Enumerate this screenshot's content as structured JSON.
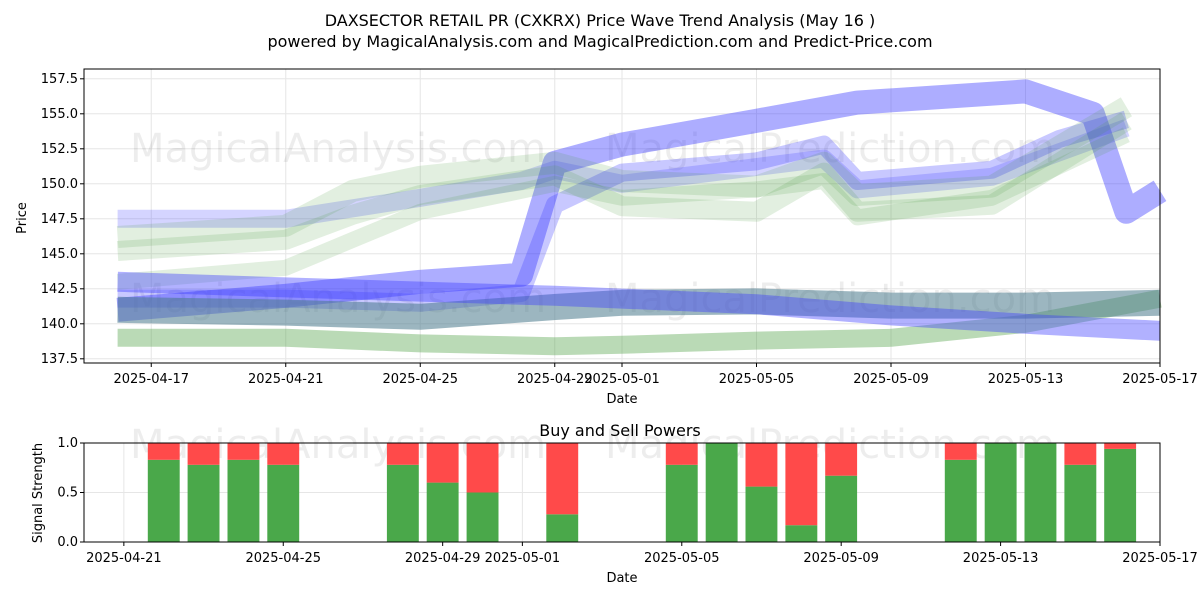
{
  "figure": {
    "title_line1": "DAXSECTOR RETAIL PR (CXKRX) Price Wave Trend Analysis (May 16 )",
    "title_line2": "powered by MagicalAnalysis.com and MagicalPrediction.com and Predict-Price.com",
    "watermarks": [
      "MagicalAnalysis.com",
      "MagicalPrediction.com"
    ]
  },
  "chart_data": [
    {
      "type": "area",
      "title": "",
      "xlabel": "Date",
      "ylabel": "Price",
      "xlim": [
        "2025-04-15",
        "2025-05-17"
      ],
      "ylim": [
        137.2,
        158.2
      ],
      "grid": true,
      "x_ticks": [
        "2025-04-17",
        "2025-04-21",
        "2025-04-25",
        "2025-04-29",
        "2025-05-01",
        "2025-05-05",
        "2025-05-09",
        "2025-05-13",
        "2025-05-17"
      ],
      "y_ticks": [
        137.5,
        140.0,
        142.5,
        145.0,
        147.5,
        150.0,
        152.5,
        155.0,
        157.5
      ],
      "colors": {
        "blue": "#3b3bff",
        "green": "#4a9e3f",
        "teal": "#4a7a8c"
      },
      "series": [
        {
          "color": "blue",
          "points": [
            [
              "2025-04-16",
              141.0
            ],
            [
              "2025-04-21",
              142.0
            ],
            [
              "2025-04-25",
              143.0
            ],
            [
              "2025-04-28",
              143.5
            ],
            [
              "2025-04-29",
              151.5
            ],
            [
              "2025-05-01",
              152.8
            ],
            [
              "2025-05-05",
              154.5
            ],
            [
              "2025-05-08",
              155.8
            ],
            [
              "2025-05-13",
              156.6
            ],
            [
              "2025-05-15",
              155.0
            ],
            [
              "2025-05-16",
              148.0
            ],
            [
              "2025-05-17",
              149.5
            ]
          ]
        },
        {
          "color": "blue",
          "points": [
            [
              "2025-04-16",
              141.8
            ],
            [
              "2025-04-21",
              141.8
            ],
            [
              "2025-04-25",
              141.5
            ],
            [
              "2025-04-28",
              142.2
            ],
            [
              "2025-04-29",
              148.5
            ],
            [
              "2025-05-01",
              150.8
            ],
            [
              "2025-05-05",
              151.6
            ],
            [
              "2025-05-07",
              152.8
            ],
            [
              "2025-05-08",
              150.2
            ],
            [
              "2025-05-12",
              151.0
            ],
            [
              "2025-05-14",
              153.2
            ],
            [
              "2025-05-16",
              154.6
            ]
          ]
        },
        {
          "color": "blue",
          "points": [
            [
              "2025-04-16",
              147.5
            ],
            [
              "2025-04-21",
              147.5
            ],
            [
              "2025-04-25",
              149.0
            ],
            [
              "2025-04-28",
              150.2
            ],
            [
              "2025-04-29",
              151.0
            ],
            [
              "2025-05-01",
              150.0
            ],
            [
              "2025-05-05",
              151.2
            ],
            [
              "2025-05-07",
              151.8
            ],
            [
              "2025-05-08",
              149.6
            ],
            [
              "2025-05-12",
              150.5
            ],
            [
              "2025-05-16",
              154.0
            ]
          ]
        },
        {
          "color": "green",
          "points": [
            [
              "2025-04-16",
              146.2
            ],
            [
              "2025-04-21",
              147.0
            ],
            [
              "2025-04-23",
              149.5
            ],
            [
              "2025-04-25",
              150.5
            ],
            [
              "2025-04-29",
              151.5
            ],
            [
              "2025-05-01",
              150.2
            ],
            [
              "2025-05-05",
              149.8
            ],
            [
              "2025-05-07",
              151.5
            ],
            [
              "2025-05-08",
              149.2
            ],
            [
              "2025-05-12",
              149.8
            ],
            [
              "2025-05-16",
              155.5
            ]
          ]
        },
        {
          "color": "green",
          "points": [
            [
              "2025-04-16",
              145.2
            ],
            [
              "2025-04-21",
              146.0
            ],
            [
              "2025-04-23",
              147.8
            ],
            [
              "2025-04-25",
              149.2
            ],
            [
              "2025-04-29",
              150.6
            ],
            [
              "2025-05-01",
              148.4
            ],
            [
              "2025-05-05",
              148.0
            ],
            [
              "2025-05-07",
              150.8
            ],
            [
              "2025-05-08",
              148.0
            ],
            [
              "2025-05-12",
              148.5
            ],
            [
              "2025-05-16",
              154.5
            ]
          ]
        },
        {
          "color": "green",
          "points": [
            [
              "2025-04-16",
              143.0
            ],
            [
              "2025-04-21",
              144.0
            ],
            [
              "2025-04-23",
              146.0
            ],
            [
              "2025-04-25",
              148.0
            ],
            [
              "2025-04-29",
              150.0
            ],
            [
              "2025-05-01",
              149.0
            ],
            [
              "2025-05-05",
              149.6
            ],
            [
              "2025-05-07",
              150.2
            ],
            [
              "2025-05-08",
              147.6
            ],
            [
              "2025-05-12",
              149.0
            ],
            [
              "2025-05-16",
              153.5
            ]
          ]
        },
        {
          "color": "green",
          "points": [
            [
              "2025-04-16",
              139.0
            ],
            [
              "2025-04-21",
              139.0
            ],
            [
              "2025-04-25",
              138.6
            ],
            [
              "2025-04-29",
              138.4
            ],
            [
              "2025-05-01",
              138.5
            ],
            [
              "2025-05-05",
              138.8
            ],
            [
              "2025-05-09",
              139.0
            ],
            [
              "2025-05-13",
              140.0
            ],
            [
              "2025-05-17",
              141.8
            ]
          ]
        },
        {
          "color": "teal",
          "points": [
            [
              "2025-04-16",
              141.0
            ],
            [
              "2025-04-21",
              140.8
            ],
            [
              "2025-04-25",
              140.5
            ],
            [
              "2025-04-29",
              141.2
            ],
            [
              "2025-05-01",
              141.5
            ],
            [
              "2025-05-05",
              141.6
            ],
            [
              "2025-05-09",
              141.3
            ],
            [
              "2025-05-13",
              141.3
            ],
            [
              "2025-05-17",
              141.5
            ]
          ]
        },
        {
          "color": "blue",
          "points": [
            [
              "2025-04-16",
              143.0
            ],
            [
              "2025-04-21",
              142.6
            ],
            [
              "2025-04-25",
              142.3
            ],
            [
              "2025-04-29",
              142.0
            ],
            [
              "2025-05-01",
              141.8
            ],
            [
              "2025-05-05",
              141.4
            ],
            [
              "2025-05-09",
              140.6
            ],
            [
              "2025-05-13",
              140.0
            ],
            [
              "2025-05-17",
              139.5
            ]
          ]
        }
      ]
    },
    {
      "type": "bar",
      "title": "Buy and Sell Powers",
      "xlabel": "Date",
      "ylabel": "Signal Strength",
      "xlim": [
        "2025-04-20",
        "2025-05-17"
      ],
      "ylim": [
        0,
        1.0
      ],
      "grid": true,
      "x_ticks": [
        "2025-04-21",
        "2025-04-25",
        "2025-04-29",
        "2025-05-01",
        "2025-05-05",
        "2025-05-09",
        "2025-05-13",
        "2025-05-17"
      ],
      "y_ticks": [
        0.0,
        0.5,
        1.0
      ],
      "colors": {
        "buy": "#4aa84a",
        "sell": "#ff4a4a"
      },
      "series": [
        {
          "name": "",
          "dates": [
            "2025-04-22",
            "2025-04-23",
            "2025-04-24",
            "2025-04-25",
            "2025-04-28",
            "2025-04-29",
            "2025-04-30",
            "2025-05-02",
            "2025-05-05",
            "2025-05-06",
            "2025-05-07",
            "2025-05-08",
            "2025-05-09",
            "2025-05-12",
            "2025-05-13",
            "2025-05-14",
            "2025-05-15",
            "2025-05-16"
          ],
          "buy": [
            0.83,
            0.78,
            0.83,
            0.78,
            0.78,
            0.6,
            0.5,
            0.28,
            0.78,
            1.0,
            0.56,
            0.17,
            0.67,
            0.83,
            1.0,
            1.0,
            0.78,
            0.94
          ]
        }
      ]
    }
  ]
}
